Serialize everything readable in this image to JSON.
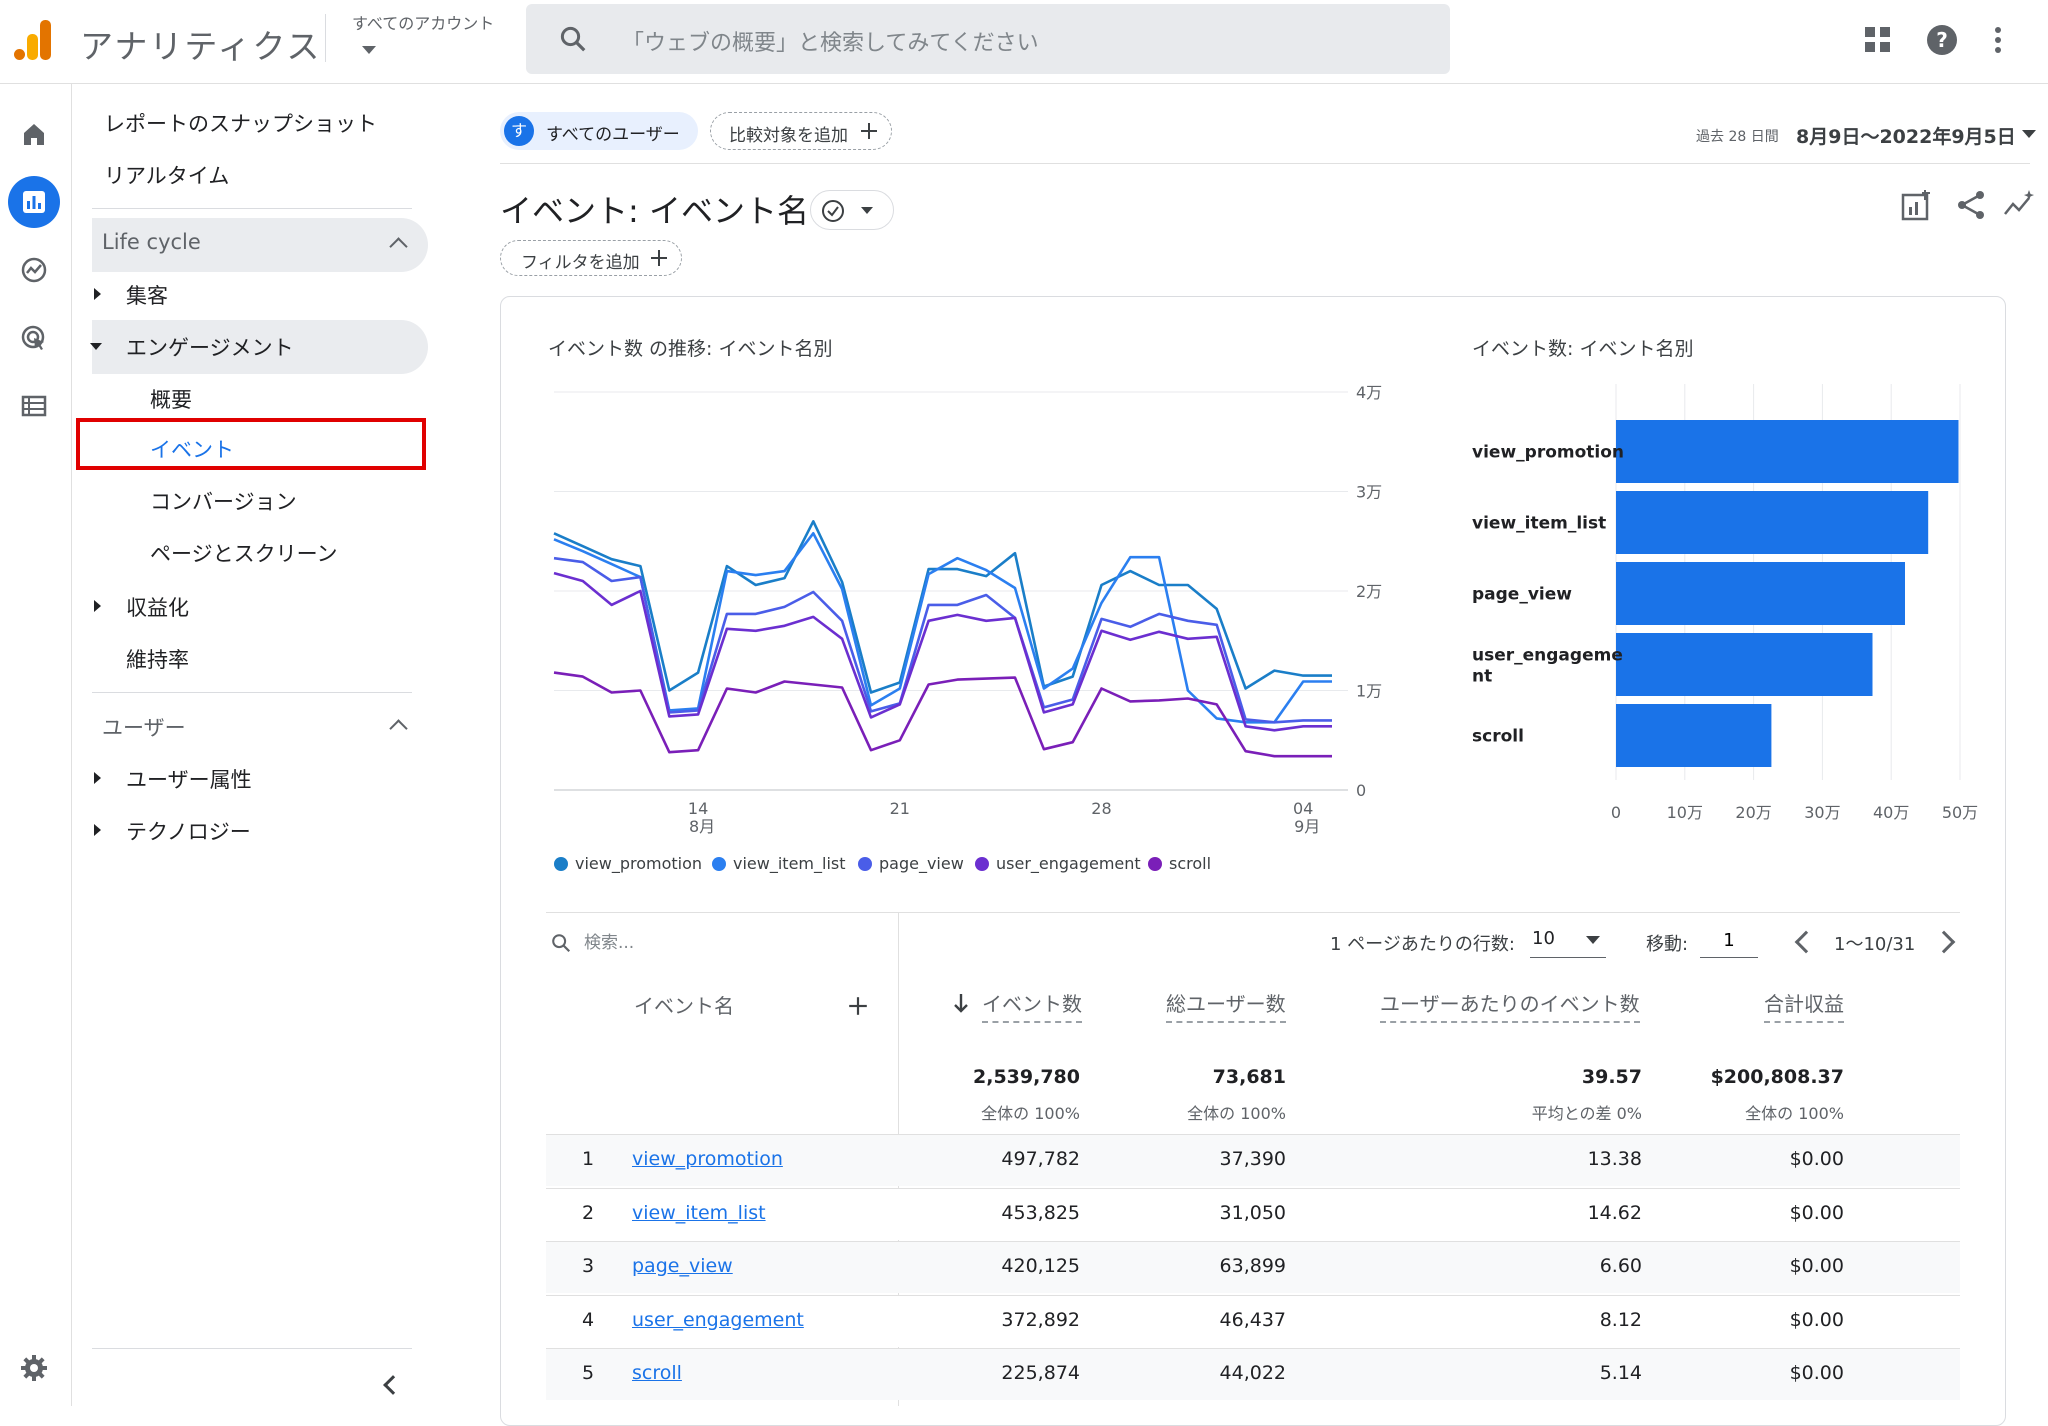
{
  "topbar": {
    "app_title": "アナリティクス",
    "account_label": "すべてのアカウント",
    "search_placeholder": "「ウェブの概要」と検索してみてください"
  },
  "nav": {
    "snapshot": "レポートのスナップショット",
    "realtime": "リアルタイム",
    "lifecycle_header": "Life cycle",
    "acquisition": "集客",
    "engagement": "エンゲージメント",
    "engagement_sub": {
      "overview": "概要",
      "events": "イベント",
      "conversions": "コンバージョン",
      "pages": "ページとスクリーン"
    },
    "monetization": "収益化",
    "retention": "維持率",
    "user_header": "ユーザー",
    "demographics": "ユーザー属性",
    "tech": "テクノロジー"
  },
  "header": {
    "user_chip_avatar": "す",
    "user_chip": "すべてのユーザー",
    "compare_chip": "比較対象を追加",
    "date_prefix": "過去 28 日間",
    "date_range": "8月9日〜2022年9月5日",
    "title": "イベント: イベント名",
    "filter_chip": "フィルタを追加"
  },
  "colors": {
    "accent": "#1a73e8",
    "highlight_box": "#e00000",
    "series": [
      "#1a7ec8",
      "#2b7ff0",
      "#4a5de8",
      "#6b2fd0",
      "#7a1fb8"
    ]
  },
  "chart_data": [
    {
      "type": "line",
      "title": "イベント数 の推移: イベント名別",
      "x": [
        "8/9",
        "8/10",
        "8/11",
        "8/12",
        "8/13",
        "8/14",
        "8/15",
        "8/16",
        "8/17",
        "8/18",
        "8/19",
        "8/20",
        "8/21",
        "8/22",
        "8/23",
        "8/24",
        "8/25",
        "8/26",
        "8/27",
        "8/28",
        "8/29",
        "8/30",
        "8/31",
        "9/1",
        "9/2",
        "9/3",
        "9/4",
        "9/5"
      ],
      "x_tick_labels": [
        {
          "label": "14",
          "sublabel": "8月"
        },
        {
          "label": "21",
          "sublabel": ""
        },
        {
          "label": "28",
          "sublabel": ""
        },
        {
          "label": "04",
          "sublabel": "9月"
        }
      ],
      "y_tick_labels": [
        "0",
        "1万",
        "2万",
        "3万",
        "4万"
      ],
      "ylim": [
        0,
        40000
      ],
      "grid": true,
      "legend": "bottom",
      "series": [
        {
          "name": "view_promotion",
          "values": [
            25800,
            24500,
            23200,
            22500,
            10000,
            11800,
            22500,
            20600,
            21300,
            27000,
            20900,
            9800,
            10800,
            22200,
            22200,
            21500,
            23800,
            10400,
            11400,
            20600,
            22000,
            20600,
            20600,
            18200,
            10200,
            12000,
            11500,
            11500
          ]
        },
        {
          "name": "view_item_list",
          "values": [
            25200,
            24000,
            22700,
            21400,
            8000,
            8200,
            22000,
            21600,
            22000,
            25800,
            20200,
            8500,
            10200,
            21700,
            23300,
            22100,
            20300,
            10200,
            12200,
            18800,
            23400,
            23400,
            10000,
            7200,
            6800,
            6800,
            10900,
            10900
          ]
        },
        {
          "name": "page_view",
          "values": [
            23300,
            22900,
            21000,
            21400,
            7800,
            8000,
            17700,
            17700,
            18400,
            19900,
            17000,
            7900,
            8700,
            18600,
            18600,
            19600,
            17300,
            8300,
            9100,
            17200,
            16400,
            17700,
            17000,
            16600,
            7100,
            6800,
            7000,
            7000
          ]
        },
        {
          "name": "user_engagement",
          "values": [
            21800,
            21000,
            18600,
            20000,
            7400,
            7600,
            16200,
            16000,
            16500,
            17400,
            15200,
            7300,
            8600,
            17000,
            17600,
            17000,
            17300,
            7800,
            8600,
            16000,
            15100,
            15900,
            15200,
            15400,
            6400,
            6000,
            6400,
            6400
          ]
        },
        {
          "name": "scroll",
          "values": [
            11800,
            11400,
            9800,
            10000,
            3800,
            4000,
            10200,
            9800,
            10900,
            10600,
            10300,
            4000,
            5000,
            10600,
            11100,
            11200,
            11300,
            4100,
            4800,
            10200,
            8900,
            9000,
            9200,
            8600,
            3900,
            3400,
            3400,
            3400
          ]
        }
      ]
    },
    {
      "type": "bar",
      "orientation": "horizontal",
      "title": "イベント数: イベント名別",
      "categories": [
        "view_promotion",
        "view_item_list",
        "page_view",
        "user_engagement",
        "scroll"
      ],
      "category_display": [
        "view_promotion",
        "view_item_list",
        "page_view",
        "user_engageme\nnt",
        "scroll"
      ],
      "values": [
        497782,
        453825,
        420125,
        372892,
        225874
      ],
      "x_tick_labels": [
        "0",
        "10万",
        "20万",
        "30万",
        "40万",
        "50万"
      ],
      "xlim": [
        0,
        500000
      ],
      "grid": true
    }
  ],
  "table": {
    "search_placeholder": "検索...",
    "rows_per_page_label": "1 ページあたりの行数:",
    "rows_per_page": "10",
    "goto_label": "移動:",
    "goto_value": "1",
    "page_range": "1〜10/31",
    "headers": {
      "event_name": "イベント名",
      "event_count": "イベント数",
      "total_users": "総ユーザー数",
      "per_user": "ユーザーあたりのイベント数",
      "revenue": "合計収益"
    },
    "totals": {
      "event_count": "2,539,780",
      "event_count_sub": "全体の 100%",
      "total_users": "73,681",
      "total_users_sub": "全体の 100%",
      "per_user": "39.57",
      "per_user_sub": "平均との差 0%",
      "revenue": "$200,808.37",
      "revenue_sub": "全体の 100%"
    },
    "rows": [
      {
        "index": "1",
        "name": "view_promotion",
        "count": "497,782",
        "users": "37,390",
        "per_user": "13.38",
        "revenue": "$0.00"
      },
      {
        "index": "2",
        "name": "view_item_list",
        "count": "453,825",
        "users": "31,050",
        "per_user": "14.62",
        "revenue": "$0.00"
      },
      {
        "index": "3",
        "name": "page_view",
        "count": "420,125",
        "users": "63,899",
        "per_user": "6.60",
        "revenue": "$0.00"
      },
      {
        "index": "4",
        "name": "user_engagement",
        "count": "372,892",
        "users": "46,437",
        "per_user": "8.12",
        "revenue": "$0.00"
      },
      {
        "index": "5",
        "name": "scroll",
        "count": "225,874",
        "users": "44,022",
        "per_user": "5.14",
        "revenue": "$0.00"
      }
    ]
  }
}
